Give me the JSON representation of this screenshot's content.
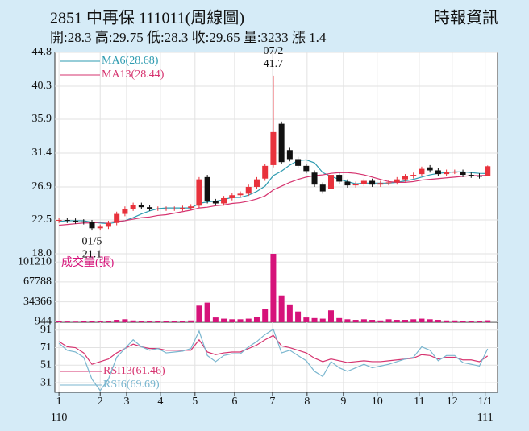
{
  "chart_data": {
    "type": "candlestick",
    "title": "2851 中再保 111011(周線圖)",
    "source": "時報資訊",
    "subtitle": "開:28.3 高:29.75 低:28.3 收:29.65 量:3233 漲 1.4",
    "x": [
      0,
      1,
      2,
      3,
      4,
      5,
      6,
      7,
      8,
      9,
      10,
      11,
      12,
      13,
      14,
      15,
      16,
      17,
      18,
      19,
      20,
      21,
      22,
      23,
      24,
      25,
      26,
      27,
      28,
      29,
      30,
      31,
      32,
      33,
      34,
      35,
      36,
      37,
      38,
      39,
      40,
      41,
      42,
      43,
      44,
      45,
      46,
      47,
      48,
      49,
      50,
      51,
      52
    ],
    "xlim": [
      -0.5,
      53.2
    ],
    "xticks": [
      {
        "value": 0,
        "label": "1"
      },
      {
        "value": 5,
        "label": "2"
      },
      {
        "value": 8.2,
        "label": "3"
      },
      {
        "value": 12.3,
        "label": "4"
      },
      {
        "value": 16.5,
        "label": "5"
      },
      {
        "value": 21.3,
        "label": "6"
      },
      {
        "value": 25.9,
        "label": "7"
      },
      {
        "value": 30.1,
        "label": "8"
      },
      {
        "value": 34.5,
        "label": "9"
      },
      {
        "value": 38.6,
        "label": "10"
      },
      {
        "value": 43.7,
        "label": "11"
      },
      {
        "value": 47.7,
        "label": "12"
      },
      {
        "value": 51.7,
        "label": "1/1"
      }
    ],
    "x_sub_labels": [
      {
        "value": 0,
        "label": "110"
      },
      {
        "value": 51.7,
        "label": "111"
      }
    ],
    "ylim": [
      18,
      44.8
    ],
    "yticks": [
      44.8,
      40.3,
      35.9,
      31.4,
      26.9,
      22.5,
      {
        "value": 18,
        "label": "18.0"
      }
    ],
    "up_color": "#e8323c",
    "down_color": "#111111",
    "open": [
      22.4,
      22.5,
      22.4,
      22.3,
      22.2,
      21.4,
      21.6,
      22.1,
      23.3,
      24.0,
      24.5,
      24.2,
      24.0,
      24.0,
      24.0,
      24.0,
      24.1,
      24.4,
      28.2,
      25.0,
      24.7,
      25.4,
      25.8,
      26.0,
      26.9,
      28.0,
      29.8,
      35.3,
      31.8,
      30.6,
      29.7,
      28.8,
      27.2,
      26.6,
      28.5,
      27.6,
      27.1,
      27.3,
      27.7,
      27.2,
      27.4,
      27.5,
      27.9,
      28.3,
      28.6,
      29.5,
      29.1,
      28.6,
      28.9,
      28.9,
      28.5,
      28.4,
      28.3
    ],
    "high": [
      22.8,
      22.8,
      22.7,
      22.6,
      22.5,
      21.9,
      22.4,
      23.6,
      24.3,
      24.8,
      24.8,
      24.5,
      24.3,
      24.3,
      24.3,
      24.4,
      24.6,
      28.2,
      28.5,
      25.3,
      25.7,
      26.1,
      26.3,
      27.2,
      28.2,
      30.0,
      41.7,
      35.6,
      32.1,
      30.9,
      30.0,
      29.1,
      27.5,
      28.8,
      28.8,
      27.9,
      27.6,
      28.0,
      28.0,
      27.7,
      27.8,
      28.2,
      28.6,
      28.8,
      29.6,
      29.8,
      29.4,
      29.2,
      29.2,
      29.2,
      28.8,
      28.7,
      29.75
    ],
    "low": [
      22.1,
      22.1,
      22.0,
      21.9,
      21.1,
      21.1,
      21.3,
      21.8,
      23.0,
      23.7,
      23.9,
      23.7,
      23.7,
      23.7,
      23.7,
      23.7,
      23.8,
      24.1,
      24.7,
      24.4,
      24.4,
      25.1,
      25.5,
      25.7,
      26.6,
      27.7,
      29.5,
      29.9,
      30.3,
      29.4,
      28.7,
      26.9,
      26.0,
      26.3,
      27.3,
      26.8,
      26.8,
      27.0,
      26.9,
      26.9,
      27.1,
      27.2,
      27.6,
      28.0,
      28.3,
      28.8,
      28.3,
      28.3,
      28.6,
      28.2,
      28.1,
      28.0,
      28.3
    ],
    "close": [
      22.5,
      22.4,
      22.3,
      22.2,
      21.4,
      21.6,
      22.1,
      23.3,
      24.0,
      24.5,
      24.2,
      24.0,
      24.0,
      24.0,
      24.0,
      24.1,
      24.3,
      27.9,
      25.0,
      24.7,
      25.4,
      25.8,
      26.0,
      26.9,
      27.9,
      29.7,
      34.2,
      30.2,
      30.6,
      29.7,
      29.0,
      27.2,
      26.3,
      28.5,
      27.6,
      27.1,
      27.3,
      27.7,
      27.2,
      27.4,
      27.5,
      27.9,
      28.3,
      28.5,
      29.3,
      29.1,
      28.6,
      28.9,
      28.9,
      28.5,
      28.4,
      28.25,
      29.65
    ],
    "series": [
      {
        "name": "MA6(28.68)",
        "color": "#2e9bb0",
        "values": [
          22.3,
          22.4,
          22.4,
          22.4,
          22.2,
          22.1,
          22.0,
          22.2,
          22.4,
          22.8,
          23.3,
          23.7,
          24.0,
          24.1,
          24.1,
          24.1,
          24.1,
          24.7,
          24.9,
          25.0,
          25.2,
          25.5,
          25.5,
          25.8,
          26.3,
          27.0,
          28.4,
          29.0,
          29.8,
          30.4,
          30.5,
          30.1,
          28.8,
          28.3,
          27.9,
          27.6,
          27.3,
          27.4,
          27.4,
          27.4,
          27.4,
          27.5,
          27.7,
          27.9,
          28.2,
          28.5,
          28.7,
          28.8,
          28.9,
          28.9,
          28.8,
          28.7,
          28.68
        ]
      },
      {
        "name": "MA13(28.44)",
        "color": "#d6336f",
        "values": [
          21.8,
          21.9,
          22.0,
          22.1,
          22.1,
          22.2,
          22.2,
          22.3,
          22.4,
          22.6,
          22.8,
          22.9,
          23.1,
          23.2,
          23.4,
          23.6,
          23.8,
          24.1,
          24.2,
          24.4,
          24.5,
          24.7,
          24.8,
          25.0,
          25.3,
          25.7,
          26.5,
          27.0,
          27.5,
          27.9,
          28.2,
          28.4,
          28.5,
          28.7,
          28.8,
          28.8,
          28.7,
          28.5,
          28.2,
          27.9,
          27.6,
          27.5,
          27.5,
          27.6,
          27.8,
          27.9,
          28.0,
          28.1,
          28.2,
          28.3,
          28.4,
          28.4,
          28.44
        ]
      }
    ],
    "annotations": [
      {
        "x": 26,
        "value": 41.7,
        "date": "07/2",
        "position": "above"
      },
      {
        "x": 4,
        "value": 21.1,
        "date": "01/5",
        "position": "below"
      }
    ],
    "volume": {
      "name": "成交量(張)",
      "color": "#d6137a",
      "ylim": [
        0,
        115000
      ],
      "yticks": [
        101210,
        67788,
        34366,
        944
      ],
      "values": [
        1500,
        1200,
        1000,
        1500,
        2500,
        1500,
        2000,
        4000,
        5000,
        3000,
        2000,
        1500,
        1500,
        1500,
        2000,
        2000,
        3000,
        28000,
        33000,
        8000,
        6000,
        5000,
        5000,
        6000,
        9000,
        22000,
        115000,
        45000,
        30000,
        18000,
        8000,
        7000,
        6000,
        20000,
        7000,
        5000,
        4000,
        5000,
        4000,
        3000,
        5000,
        4000,
        4000,
        5000,
        6000,
        5000,
        4000,
        3000,
        3000,
        2500,
        2000,
        2000,
        3233
      ]
    },
    "rsi": {
      "ylim": [
        20,
        100
      ],
      "yticks": [
        91,
        71,
        51,
        31
      ],
      "series": [
        {
          "name": "RSI13(61.46)",
          "color": "#d6336f",
          "values": [
            78,
            72,
            71,
            65,
            52,
            55,
            58,
            65,
            70,
            75,
            72,
            70,
            70,
            68,
            68,
            68,
            68,
            80,
            66,
            63,
            65,
            66,
            66,
            70,
            74,
            80,
            85,
            73,
            71,
            68,
            65,
            59,
            55,
            58,
            56,
            54,
            55,
            56,
            55,
            55,
            56,
            57,
            58,
            59,
            63,
            62,
            58,
            60,
            60,
            57,
            57,
            55,
            61.46
          ]
        },
        {
          "name": "RSI6(69.69)",
          "color": "#7ab6cf",
          "values": [
            76,
            68,
            66,
            60,
            35,
            22,
            35,
            60,
            70,
            80,
            72,
            68,
            70,
            65,
            66,
            67,
            70,
            90,
            62,
            55,
            62,
            64,
            64,
            72,
            78,
            86,
            92,
            65,
            68,
            62,
            56,
            44,
            38,
            55,
            48,
            44,
            48,
            52,
            48,
            50,
            52,
            55,
            58,
            60,
            72,
            68,
            56,
            62,
            62,
            54,
            52,
            50,
            69.69
          ]
        }
      ]
    }
  }
}
